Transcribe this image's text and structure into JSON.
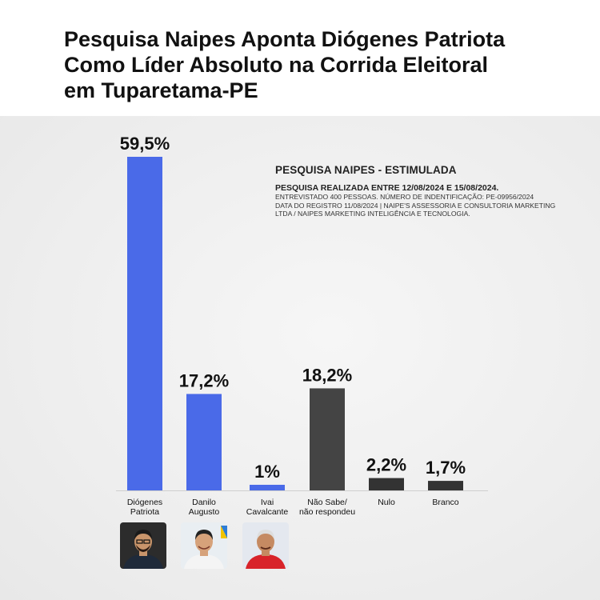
{
  "headline": {
    "line1": "Pesquisa Naipes Aponta Diógenes Patriota",
    "line2": "Como Líder Absoluto na Corrida Eleitoral",
    "line3": "em Tuparetama-PE"
  },
  "note": {
    "title": "PESQUISA NAIPES - ESTIMULADA",
    "subtitle": "PESQUISA REALIZADA ENTRE 12/08/2024 E 15/08/2024.",
    "lines": [
      "ENTREVISTADO 400 PESSOAS. NÚMERO DE INDENTIFICAÇÃO: PE-09956/2024",
      "DATA DO REGISTRO 11/08/2024 | NAIPE'S ASSESSORIA E CONSULTORIA MARKETING",
      "LTDA / NAIPES MARKETING  INTELIGÊNCIA E TECNOLOGIA."
    ]
  },
  "chart_data": {
    "type": "bar",
    "title": "PESQUISA NAIPES - ESTIMULADA",
    "categories": [
      [
        "Diógenes",
        "Patriota"
      ],
      [
        "Danilo",
        "Augusto"
      ],
      [
        "Ivai",
        "Cavalcante"
      ],
      [
        "Não Sabe/",
        "não respondeu"
      ],
      [
        "Nulo"
      ],
      [
        "Branco"
      ]
    ],
    "values": [
      59.5,
      17.2,
      1,
      18.2,
      2.2,
      1.7
    ],
    "value_labels": [
      "59,5%",
      "17,2%",
      "1%",
      "18,2%",
      "2,2%",
      "1,7%"
    ],
    "bar_colors": [
      "#4a6ae8",
      "#4a6ae8",
      "#4a6ae8",
      "#444444",
      "#333333",
      "#333333"
    ],
    "ylim": [
      0,
      59.5
    ],
    "grid": false,
    "legend": "none"
  },
  "photos": [
    {
      "name": "diogenes-photo",
      "bg": "#2c2c2c",
      "skin": "#c9956b",
      "shirt": "#1f2a3a",
      "hair": "#1a1a1a"
    },
    {
      "name": "danilo-photo",
      "bg": "#e9eef2",
      "skin": "#d6a27a",
      "shirt": "#f4f4f4",
      "hair": "#222222"
    },
    {
      "name": "ivai-photo",
      "bg": "#e4e8ef",
      "skin": "#c58a62",
      "shirt": "#d8232a",
      "hair": "#dddddd"
    }
  ]
}
